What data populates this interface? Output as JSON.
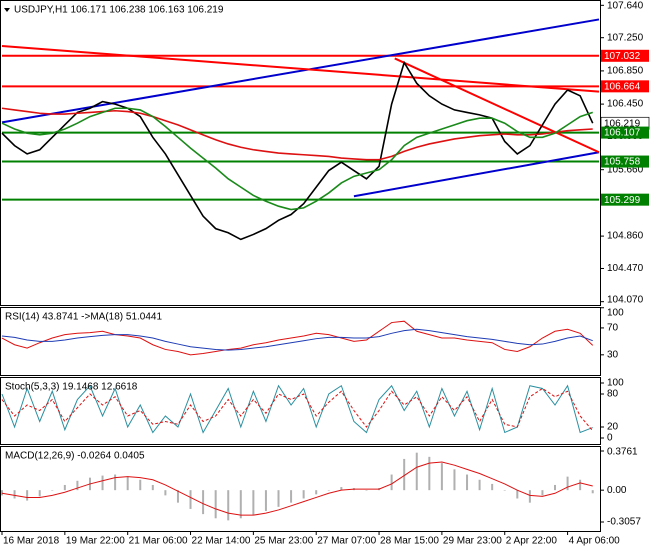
{
  "chart_data": [
    {
      "type": "line",
      "title": "USDJPY,H1  106.171 106.238 106.163 106.219",
      "x": [
        0,
        2,
        4,
        6,
        8,
        10,
        12,
        14,
        16,
        18,
        20,
        22,
        24,
        26,
        28,
        30,
        32,
        34,
        36,
        38,
        40,
        42,
        44,
        46,
        48,
        50,
        52,
        54,
        56,
        58,
        60,
        62,
        64,
        66,
        68,
        70,
        72,
        74,
        76,
        78,
        80,
        82,
        84,
        86,
        88,
        90,
        92,
        94
      ],
      "xlim": [
        0,
        95
      ],
      "xticks": [
        {
          "value": 0,
          "label": "16 Mar 2018"
        },
        {
          "value": 10,
          "label": "19 Mar 22:00"
        },
        {
          "value": 20,
          "label": "21 Mar 06:00"
        },
        {
          "value": 30,
          "label": "22 Mar 14:00"
        },
        {
          "value": 40,
          "label": "25 Mar 23:00"
        },
        {
          "value": 50,
          "label": "27 Mar 07:00"
        },
        {
          "value": 60,
          "label": "28 Mar 15:00"
        },
        {
          "value": 70,
          "label": "29 Mar 23:00"
        },
        {
          "value": 80,
          "label": "2 Apr 22:00"
        },
        {
          "value": 90,
          "label": "4 Apr 06:00"
        }
      ],
      "ylim": [
        104.03,
        107.68
      ],
      "yticks": [
        {
          "value": 107.64,
          "label": "107.640"
        },
        {
          "value": 107.25,
          "label": "107.250"
        },
        {
          "value": 106.85,
          "label": "106.850"
        },
        {
          "value": 106.45,
          "label": "106.450"
        },
        {
          "value": 106.06,
          "label": "106.060"
        },
        {
          "value": 105.66,
          "label": "105.660"
        },
        {
          "value": 105.27,
          "label": "105.270"
        },
        {
          "value": 104.86,
          "label": "104.860"
        },
        {
          "value": 104.47,
          "label": "104.470"
        },
        {
          "value": 104.07,
          "label": "104.070"
        }
      ],
      "levels": [
        {
          "value": 107.032,
          "color": "#ff0000"
        },
        {
          "value": 106.664,
          "color": "#ff0000"
        },
        {
          "value": 106.219,
          "color": "#ffffff"
        },
        {
          "value": 106.107,
          "color": "#008000"
        },
        {
          "value": 105.758,
          "color": "#008000"
        },
        {
          "value": 105.299,
          "color": "#008000"
        }
      ],
      "trendlines": [
        {
          "color": "#0000cd",
          "x": [
            0,
            95
          ],
          "values": [
            106.23,
            107.47
          ]
        },
        {
          "color": "#0000cd",
          "x": [
            56,
            95
          ],
          "values": [
            105.34,
            105.87
          ]
        },
        {
          "color": "#ff0000",
          "x": [
            0,
            95
          ],
          "values": [
            107.15,
            106.6
          ]
        },
        {
          "color": "#ff0000",
          "x": [
            62.5,
            95
          ],
          "values": [
            107.0,
            105.87
          ]
        }
      ],
      "series": [
        {
          "color": "#000000",
          "values": [
            106.1,
            105.95,
            105.85,
            105.9,
            106.05,
            106.2,
            106.35,
            106.4,
            106.48,
            106.45,
            106.4,
            106.3,
            106.05,
            105.85,
            105.6,
            105.35,
            105.1,
            104.95,
            104.9,
            104.82,
            104.88,
            104.95,
            105.05,
            105.12,
            105.25,
            105.45,
            105.65,
            105.75,
            105.65,
            105.55,
            105.7,
            106.45,
            106.95,
            106.7,
            106.55,
            106.45,
            106.38,
            106.35,
            106.32,
            106.28,
            106.0,
            105.85,
            105.95,
            106.2,
            106.45,
            106.62,
            106.55,
            106.22
          ]
        },
        {
          "color": "#dd1111",
          "values": [
            106.4,
            106.38,
            106.36,
            106.34,
            106.33,
            106.33,
            106.34,
            106.35,
            106.36,
            106.37,
            106.36,
            106.34,
            106.3,
            106.25,
            106.2,
            106.14,
            106.08,
            106.02,
            105.97,
            105.93,
            105.9,
            105.88,
            105.86,
            105.85,
            105.84,
            105.83,
            105.82,
            105.8,
            105.79,
            105.78,
            105.78,
            105.82,
            105.88,
            105.93,
            105.97,
            106.0,
            106.03,
            106.05,
            106.07,
            106.08,
            106.09,
            106.08,
            106.08,
            106.09,
            106.11,
            106.13,
            106.14,
            106.15
          ]
        },
        {
          "color": "#1a8a1a",
          "values": [
            106.22,
            106.15,
            106.1,
            106.08,
            106.1,
            106.15,
            106.22,
            106.3,
            106.35,
            106.4,
            106.4,
            106.38,
            106.3,
            106.18,
            106.05,
            105.92,
            105.8,
            105.68,
            105.55,
            105.45,
            105.35,
            105.28,
            105.22,
            105.18,
            105.2,
            105.28,
            105.38,
            105.5,
            105.58,
            105.62,
            105.66,
            105.78,
            105.95,
            106.05,
            106.1,
            106.15,
            106.2,
            106.25,
            106.28,
            106.28,
            106.22,
            106.12,
            106.05,
            106.05,
            106.1,
            106.2,
            106.3,
            106.35
          ]
        }
      ]
    },
    {
      "type": "line",
      "title": "RSI(14) 43.8741  ->MA(18) 51.0441",
      "x": [
        0,
        2,
        4,
        6,
        8,
        10,
        12,
        14,
        16,
        18,
        20,
        22,
        24,
        26,
        28,
        30,
        32,
        34,
        36,
        38,
        40,
        42,
        44,
        46,
        48,
        50,
        52,
        54,
        56,
        58,
        60,
        62,
        64,
        66,
        68,
        70,
        72,
        74,
        76,
        78,
        80,
        82,
        84,
        86,
        88,
        90,
        92,
        94
      ],
      "xlim": [
        0,
        95
      ],
      "ylim": [
        0,
        100
      ],
      "yticks": [
        100,
        70,
        30
      ],
      "series": [
        {
          "color": "#dd1111",
          "values": [
            55,
            45,
            40,
            48,
            55,
            60,
            62,
            63,
            65,
            60,
            58,
            55,
            45,
            38,
            35,
            30,
            32,
            35,
            38,
            40,
            45,
            48,
            52,
            55,
            58,
            62,
            60,
            55,
            50,
            52,
            65,
            78,
            80,
            65,
            60,
            55,
            55,
            52,
            50,
            48,
            38,
            35,
            42,
            55,
            65,
            68,
            62,
            44
          ]
        },
        {
          "color": "#1e3cb4",
          "values": [
            58,
            56,
            52,
            50,
            50,
            52,
            55,
            57,
            59,
            60,
            60,
            58,
            55,
            50,
            46,
            42,
            40,
            38,
            37,
            38,
            40,
            42,
            45,
            48,
            51,
            54,
            56,
            56,
            55,
            55,
            57,
            62,
            66,
            68,
            66,
            63,
            60,
            57,
            55,
            53,
            50,
            47,
            45,
            46,
            50,
            55,
            58,
            51
          ]
        }
      ]
    },
    {
      "type": "line",
      "title": "Stoch(5,3,3) 19.1468 12.6618",
      "x": [
        0,
        2,
        4,
        6,
        8,
        10,
        12,
        14,
        16,
        18,
        20,
        22,
        24,
        26,
        28,
        30,
        32,
        34,
        36,
        38,
        40,
        42,
        44,
        46,
        48,
        50,
        52,
        54,
        56,
        58,
        60,
        62,
        64,
        66,
        68,
        70,
        72,
        74,
        76,
        78,
        80,
        82,
        84,
        86,
        88,
        90,
        92,
        94
      ],
      "xlim": [
        0,
        95
      ],
      "ylim": [
        0,
        100
      ],
      "yticks": [
        100,
        80,
        20,
        0
      ],
      "series": [
        {
          "color": "#2a8fa0",
          "values": [
            80,
            20,
            90,
            30,
            85,
            15,
            70,
            95,
            40,
            90,
            20,
            60,
            10,
            40,
            20,
            80,
            10,
            50,
            90,
            20,
            85,
            30,
            95,
            60,
            90,
            20,
            80,
            95,
            30,
            10,
            70,
            95,
            50,
            85,
            20,
            90,
            40,
            85,
            15,
            90,
            10,
            20,
            95,
            90,
            60,
            95,
            10,
            19
          ]
        },
        {
          "color": "#dd1111",
          "dash": true,
          "values": [
            70,
            40,
            60,
            50,
            70,
            30,
            55,
            80,
            60,
            75,
            40,
            50,
            25,
            30,
            25,
            60,
            30,
            40,
            70,
            40,
            70,
            45,
            80,
            70,
            80,
            40,
            65,
            85,
            50,
            20,
            50,
            85,
            60,
            75,
            40,
            75,
            50,
            75,
            30,
            70,
            25,
            20,
            75,
            90,
            75,
            85,
            40,
            13
          ]
        }
      ]
    },
    {
      "type": "bar",
      "title": "MACD(12,26,9) -0.0264 0.0405",
      "x": [
        0,
        2,
        4,
        6,
        8,
        10,
        12,
        14,
        16,
        18,
        20,
        22,
        24,
        26,
        28,
        30,
        32,
        34,
        36,
        38,
        40,
        42,
        44,
        46,
        48,
        50,
        52,
        54,
        56,
        58,
        60,
        62,
        64,
        66,
        68,
        70,
        72,
        74,
        76,
        78,
        80,
        82,
        84,
        86,
        88,
        90,
        92,
        94
      ],
      "xlim": [
        0,
        95
      ],
      "ylim": [
        -0.3057,
        0.3761
      ],
      "yticks": [
        0.3761,
        {
          "value": 0,
          "label": "0.00"
        },
        -0.3057
      ],
      "color": "#b0b0b0",
      "values": [
        -0.05,
        -0.08,
        -0.1,
        -0.06,
        0.0,
        0.05,
        0.09,
        0.12,
        0.14,
        0.15,
        0.13,
        0.1,
        0.05,
        -0.05,
        -0.12,
        -0.18,
        -0.23,
        -0.27,
        -0.29,
        -0.27,
        -0.24,
        -0.2,
        -0.16,
        -0.12,
        -0.08,
        -0.04,
        0.0,
        0.03,
        0.02,
        0.0,
        0.02,
        0.15,
        0.3,
        0.36,
        0.32,
        0.26,
        0.2,
        0.15,
        0.1,
        0.06,
        0.0,
        -0.08,
        -0.12,
        -0.05,
        0.05,
        0.13,
        0.1,
        -0.03
      ],
      "series": [
        {
          "color": "#dd1111",
          "values": [
            -0.03,
            -0.05,
            -0.07,
            -0.07,
            -0.05,
            -0.02,
            0.02,
            0.06,
            0.09,
            0.12,
            0.13,
            0.12,
            0.1,
            0.05,
            -0.01,
            -0.07,
            -0.13,
            -0.18,
            -0.22,
            -0.24,
            -0.24,
            -0.22,
            -0.19,
            -0.15,
            -0.11,
            -0.07,
            -0.03,
            0.0,
            0.01,
            0.01,
            0.01,
            0.06,
            0.14,
            0.22,
            0.26,
            0.27,
            0.24,
            0.2,
            0.16,
            0.11,
            0.06,
            0.0,
            -0.05,
            -0.06,
            -0.03,
            0.03,
            0.07,
            0.04
          ]
        }
      ]
    }
  ]
}
